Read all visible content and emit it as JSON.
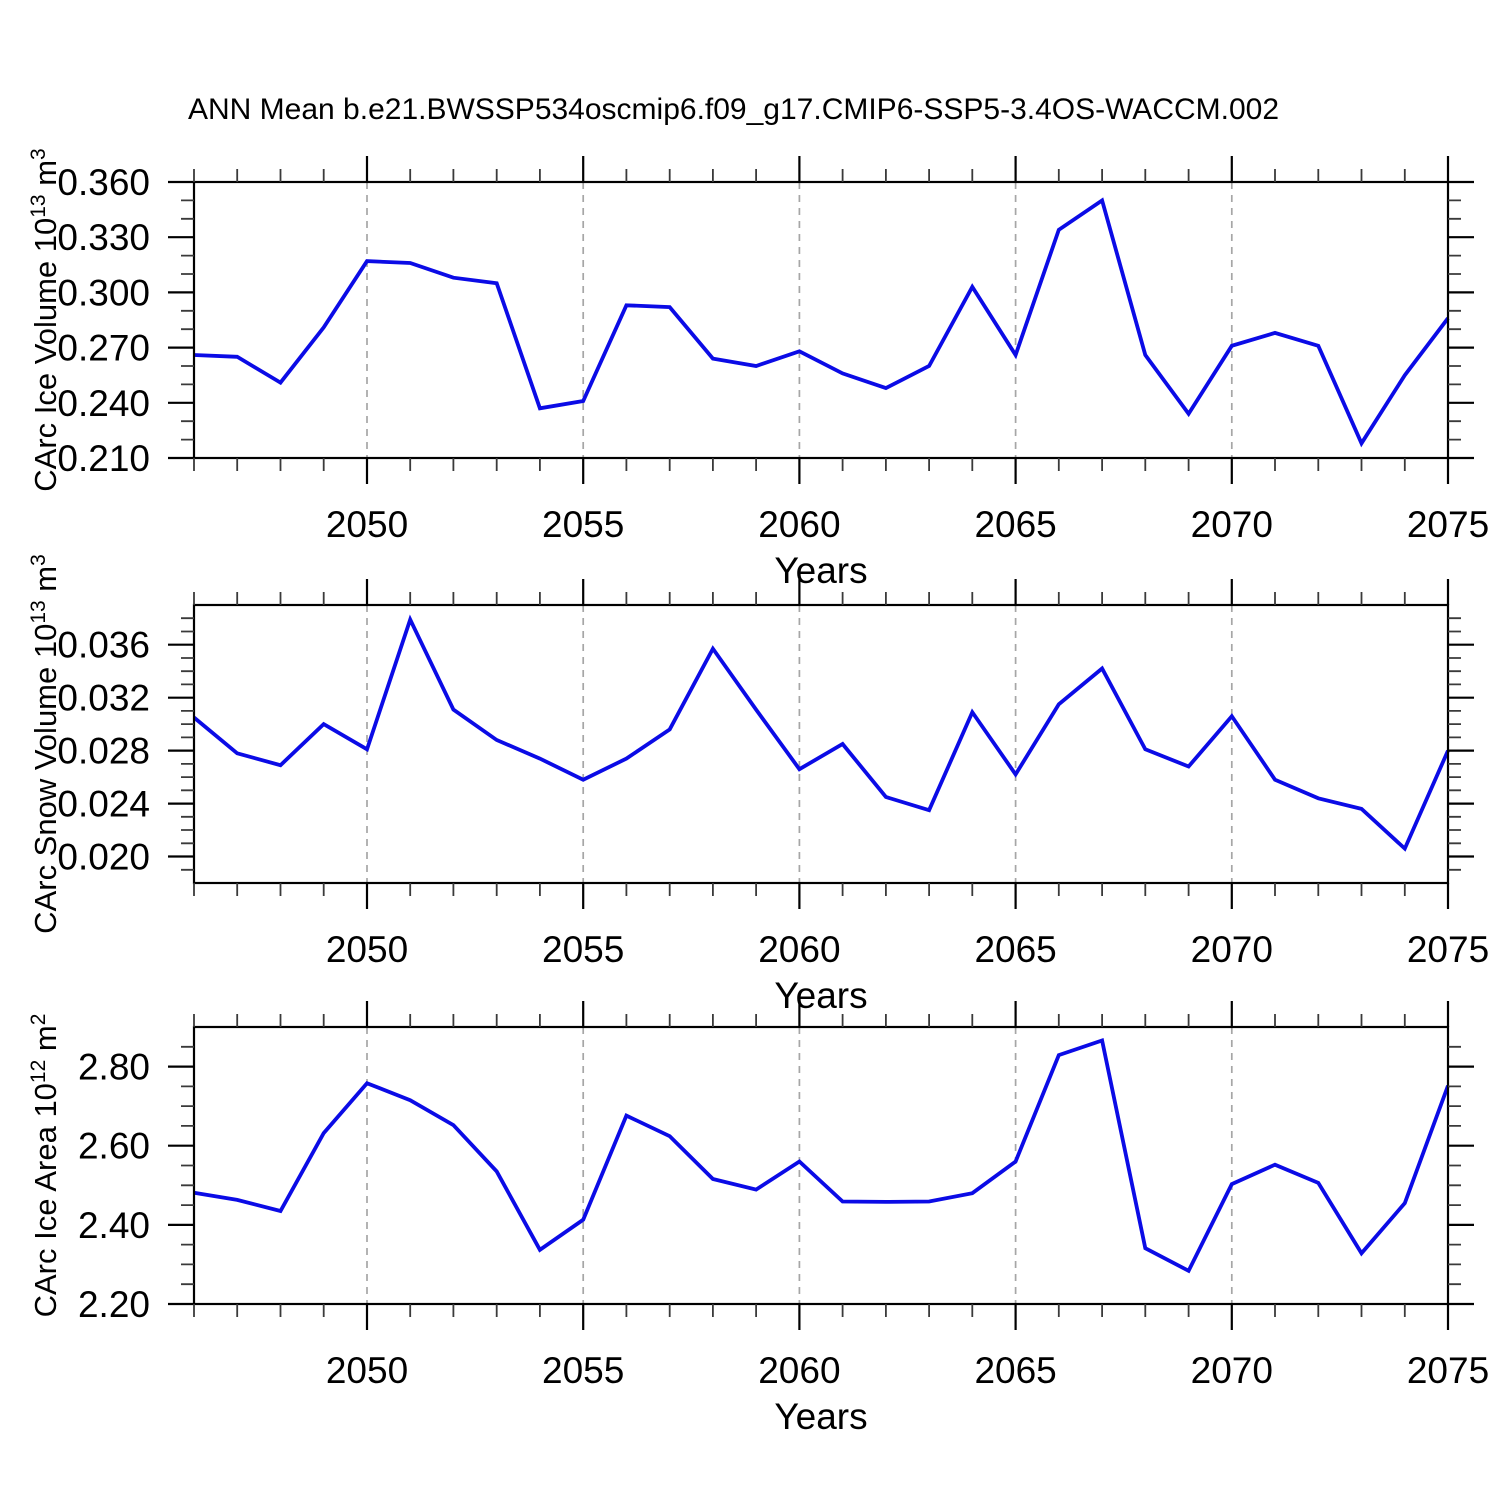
{
  "title": "ANN Mean b.e21.BWSSP534oscmip6.f09_g17.CMIP6-SSP5-3.4OS-WACCM.002",
  "colors": {
    "line": "#0b0be6",
    "grid": "#a6a6a6",
    "frame": "#000000",
    "minor_tick": "#3a3a3a",
    "text": "#000000",
    "background": "#ffffff"
  },
  "chart_data": [
    {
      "type": "line",
      "name": "carc-ice-volume",
      "ylabel_parts": [
        {
          "text": "CArc Ice Volume 10"
        },
        {
          "text": "13",
          "sup": true
        },
        {
          "text": " m"
        },
        {
          "text": "3",
          "sup": true
        }
      ],
      "xlabel": "Years",
      "xlim": [
        2046,
        2075
      ],
      "ylim": [
        0.21,
        0.36
      ],
      "grid": "vertical-dashed",
      "grid_x": [
        2050,
        2055,
        2060,
        2065,
        2070
      ],
      "legend": "none",
      "xticks": [
        {
          "label": "2050",
          "value": 2050
        },
        {
          "label": "2055",
          "value": 2055
        },
        {
          "label": "2060",
          "value": 2060
        },
        {
          "label": "2065",
          "value": 2065
        },
        {
          "label": "2070",
          "value": 2070
        },
        {
          "label": "2075",
          "value": 2075
        }
      ],
      "xminor_step": 1,
      "yticks": [
        {
          "label": "0.210",
          "value": 0.21
        },
        {
          "label": "0.240",
          "value": 0.24
        },
        {
          "label": "0.270",
          "value": 0.27
        },
        {
          "label": "0.300",
          "value": 0.3
        },
        {
          "label": "0.330",
          "value": 0.33
        },
        {
          "label": "0.360",
          "value": 0.36
        }
      ],
      "yminor_step": 0.01,
      "x": [
        2046,
        2047,
        2048,
        2049,
        2050,
        2051,
        2052,
        2053,
        2054,
        2055,
        2056,
        2057,
        2058,
        2059,
        2060,
        2061,
        2062,
        2063,
        2064,
        2065,
        2066,
        2067,
        2068,
        2069,
        2070,
        2071,
        2072,
        2073,
        2074,
        2075
      ],
      "values": [
        0.266,
        0.265,
        0.251,
        0.281,
        0.317,
        0.316,
        0.308,
        0.305,
        0.237,
        0.241,
        0.293,
        0.292,
        0.264,
        0.26,
        0.268,
        0.256,
        0.248,
        0.26,
        0.303,
        0.266,
        0.334,
        0.35,
        0.266,
        0.234,
        0.271,
        0.278,
        0.271,
        0.218,
        0.255,
        0.286
      ]
    },
    {
      "type": "line",
      "name": "carc-snow-volume",
      "ylabel_parts": [
        {
          "text": "CArc Snow Volume 10"
        },
        {
          "text": "13",
          "sup": true
        },
        {
          "text": " m"
        },
        {
          "text": "3",
          "sup": true
        }
      ],
      "xlabel": "Years",
      "xlim": [
        2046,
        2075
      ],
      "ylim": [
        0.018,
        0.039
      ],
      "grid": "vertical-dashed",
      "grid_x": [
        2050,
        2055,
        2060,
        2065,
        2070
      ],
      "legend": "none",
      "xticks": [
        {
          "label": "2050",
          "value": 2050
        },
        {
          "label": "2055",
          "value": 2055
        },
        {
          "label": "2060",
          "value": 2060
        },
        {
          "label": "2065",
          "value": 2065
        },
        {
          "label": "2070",
          "value": 2070
        },
        {
          "label": "2075",
          "value": 2075
        }
      ],
      "xminor_step": 1,
      "yticks": [
        {
          "label": "0.020",
          "value": 0.02
        },
        {
          "label": "0.024",
          "value": 0.024
        },
        {
          "label": "0.028",
          "value": 0.028
        },
        {
          "label": "0.032",
          "value": 0.032
        },
        {
          "label": "0.036",
          "value": 0.036
        }
      ],
      "yminor_step": 0.001,
      "x": [
        2046,
        2047,
        2048,
        2049,
        2050,
        2051,
        2052,
        2053,
        2054,
        2055,
        2056,
        2057,
        2058,
        2059,
        2060,
        2061,
        2062,
        2063,
        2064,
        2065,
        2066,
        2067,
        2068,
        2069,
        2070,
        2071,
        2072,
        2073,
        2074,
        2075
      ],
      "values": [
        0.0305,
        0.0278,
        0.0269,
        0.03,
        0.0281,
        0.0379,
        0.0311,
        0.0288,
        0.0274,
        0.0258,
        0.0274,
        0.0296,
        0.0357,
        0.0311,
        0.0266,
        0.0285,
        0.0245,
        0.0235,
        0.0309,
        0.0262,
        0.0315,
        0.0342,
        0.0281,
        0.0268,
        0.0306,
        0.0258,
        0.0244,
        0.0236,
        0.0206,
        0.028
      ]
    },
    {
      "type": "line",
      "name": "carc-ice-area",
      "ylabel_parts": [
        {
          "text": "CArc Ice Area 10"
        },
        {
          "text": "12",
          "sup": true
        },
        {
          "text": " m"
        },
        {
          "text": "2",
          "sup": true
        }
      ],
      "xlabel": "Years",
      "xlim": [
        2046,
        2075
      ],
      "ylim": [
        2.2,
        2.9
      ],
      "grid": "vertical-dashed",
      "grid_x": [
        2050,
        2055,
        2060,
        2065,
        2070
      ],
      "legend": "none",
      "xticks": [
        {
          "label": "2050",
          "value": 2050
        },
        {
          "label": "2055",
          "value": 2055
        },
        {
          "label": "2060",
          "value": 2060
        },
        {
          "label": "2065",
          "value": 2065
        },
        {
          "label": "2070",
          "value": 2070
        },
        {
          "label": "2075",
          "value": 2075
        }
      ],
      "xminor_step": 1,
      "yticks": [
        {
          "label": "2.20",
          "value": 2.2
        },
        {
          "label": "2.40",
          "value": 2.4
        },
        {
          "label": "2.60",
          "value": 2.6
        },
        {
          "label": "2.80",
          "value": 2.8
        }
      ],
      "yminor_step": 0.05,
      "x": [
        2046,
        2047,
        2048,
        2049,
        2050,
        2051,
        2052,
        2053,
        2054,
        2055,
        2056,
        2057,
        2058,
        2059,
        2060,
        2061,
        2062,
        2063,
        2064,
        2065,
        2066,
        2067,
        2068,
        2069,
        2070,
        2071,
        2072,
        2073,
        2074,
        2075
      ],
      "values": [
        2.481,
        2.463,
        2.435,
        2.632,
        2.758,
        2.715,
        2.652,
        2.535,
        2.337,
        2.413,
        2.676,
        2.624,
        2.516,
        2.489,
        2.56,
        2.459,
        2.458,
        2.459,
        2.48,
        2.56,
        2.829,
        2.866,
        2.341,
        2.284,
        2.503,
        2.552,
        2.506,
        2.328,
        2.455,
        2.752
      ]
    }
  ]
}
